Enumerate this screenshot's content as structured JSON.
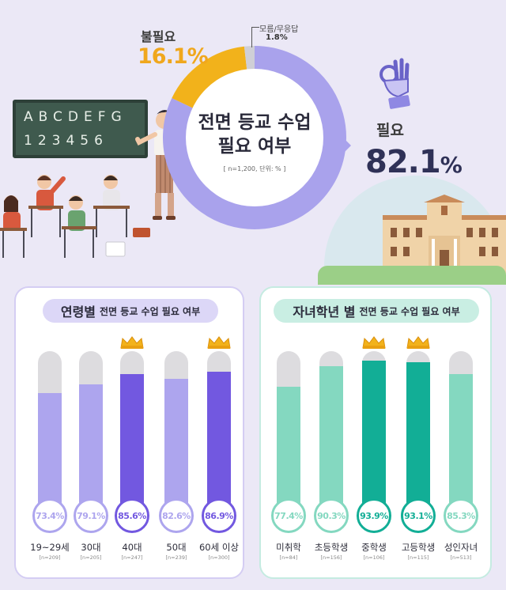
{
  "summary": {
    "title_line1": "전면 등교 수업",
    "title_line2": "필요 여부",
    "note": "[ n=1,200, 단위: % ]",
    "needed_label": "필요",
    "needed_value": "82.1",
    "unneeded_label": "불필요",
    "unneeded_value": "16.1%",
    "dunno_label": "모름/무응답",
    "dunno_value": "1.8%",
    "percent_sign": "%",
    "board_row1": "ABCDEFG",
    "board_row2": "123456",
    "colors": {
      "needed": "#a9a2ec",
      "unneeded": "#f2b21b",
      "dunno": "#cfcfd6"
    }
  },
  "chart_data": [
    {
      "type": "bar",
      "title_strong": "연령별",
      "title_rest": "전면 등교 수업 필요 여부",
      "categories": [
        "19~29세",
        "30대",
        "40대",
        "50대",
        "60세 이상"
      ],
      "sample_sizes": [
        "[n=209]",
        "[n=205]",
        "[n=247]",
        "[n=239]",
        "[n=300]"
      ],
      "values": [
        73.4,
        79.1,
        85.6,
        82.6,
        86.9
      ],
      "value_labels": [
        "73.4%",
        "79.1%",
        "85.6%",
        "82.6%",
        "86.9%"
      ],
      "highlighted": [
        false,
        false,
        true,
        false,
        true
      ],
      "ylim": [
        0,
        100
      ],
      "colors": {
        "normal": "#ada5ee",
        "highlight": "#7258e0"
      }
    },
    {
      "type": "bar",
      "title_strong": "자녀학년 별",
      "title_rest": "전면 등교 수업 필요 여부",
      "categories": [
        "미취학",
        "초등학생",
        "중학생",
        "고등학생",
        "성인자녀"
      ],
      "sample_sizes": [
        "[n=84]",
        "[n=156]",
        "[n=106]",
        "[n=115]",
        "[n=513]"
      ],
      "values": [
        77.4,
        90.3,
        93.9,
        93.1,
        85.3
      ],
      "value_labels": [
        "77.4%",
        "90.3%",
        "93.9%",
        "93.1%",
        "85.3%"
      ],
      "highlighted": [
        false,
        false,
        true,
        true,
        false
      ],
      "ylim": [
        0,
        100
      ],
      "colors": {
        "normal": "#84d8c0",
        "highlight": "#12ae96"
      }
    }
  ]
}
